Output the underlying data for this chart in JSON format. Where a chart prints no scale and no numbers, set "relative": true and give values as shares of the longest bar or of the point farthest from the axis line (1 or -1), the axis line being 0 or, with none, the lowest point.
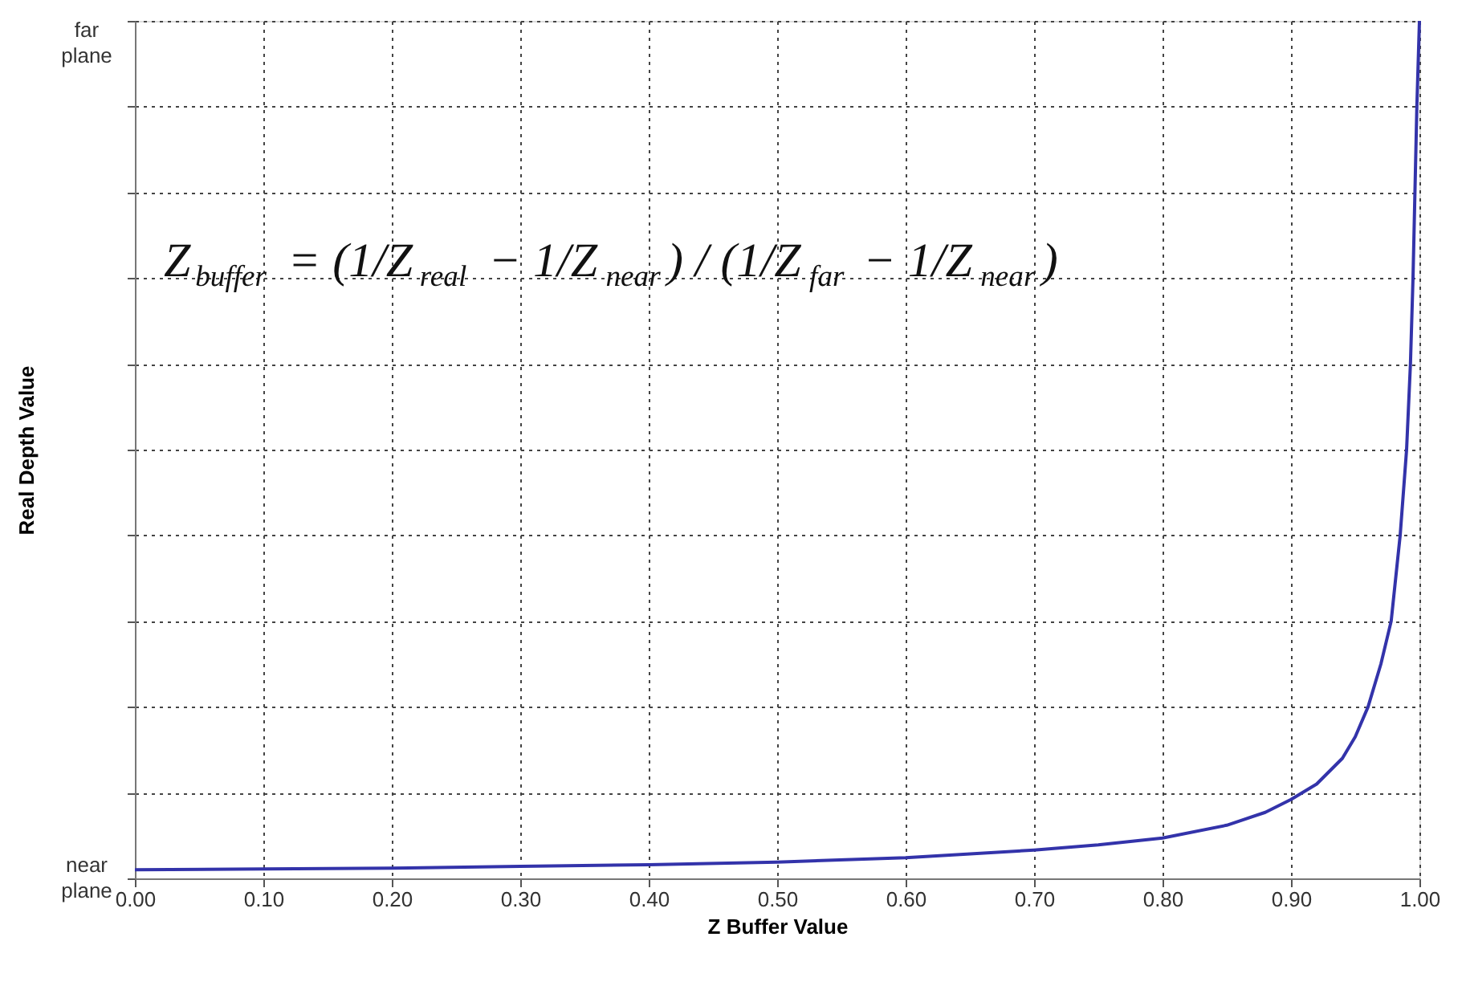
{
  "chart_data": {
    "type": "line",
    "xlabel": "Z Buffer Value",
    "ylabel": "Real Depth Value",
    "relative": true,
    "x": [
      0,
      0.1,
      0.2,
      0.3,
      0.4,
      0.5,
      0.6,
      0.7,
      0.75,
      0.8,
      0.85,
      0.88,
      0.9,
      0.92,
      0.94,
      0.95,
      0.96,
      0.97,
      0.978,
      0.985,
      0.99,
      0.993,
      0.995,
      0.9965,
      0.998,
      1.0
    ],
    "series": [
      {
        "color": "#3333aa",
        "values": [
          0.01,
          0.011,
          0.012,
          0.014,
          0.016,
          0.019,
          0.024,
          0.033,
          0.039,
          0.047,
          0.062,
          0.077,
          0.092,
          0.11,
          0.14,
          0.165,
          0.2,
          0.25,
          0.3,
          0.4,
          0.5,
          0.6,
          0.7,
          0.8,
          0.9,
          1.0
        ]
      }
    ],
    "xlim": [
      0,
      1
    ],
    "xticks": [
      {
        "value": 0,
        "label": "0.00"
      },
      {
        "value": 0.1,
        "label": "0.10"
      },
      {
        "value": 0.2,
        "label": "0.20"
      },
      {
        "value": 0.3,
        "label": "0.30"
      },
      {
        "value": 0.4,
        "label": "0.40"
      },
      {
        "value": 0.5,
        "label": "0.50"
      },
      {
        "value": 0.6,
        "label": "0.60"
      },
      {
        "value": 0.7,
        "label": "0.70"
      },
      {
        "value": 0.8,
        "label": "0.80"
      },
      {
        "value": 0.9,
        "label": "0.90"
      },
      {
        "value": 1,
        "label": "1.00"
      }
    ],
    "grid": true,
    "marker": "none",
    "line_style": "solid",
    "annotations": [
      "Z$_{buffer}$ = (1/Z$_{real}$ − 1/Z$_{near}$) / (1/Z$_{far}$ − 1/Z$_{near}$)",
      "near plane",
      "far plane"
    ]
  }
}
